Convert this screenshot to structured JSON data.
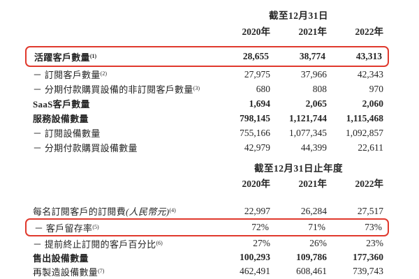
{
  "accent": {
    "highlight_border": "#e0392d",
    "text_color": "#252525"
  },
  "table1": {
    "period_header": "截至12月31日",
    "years": [
      "2020年",
      "2021年",
      "2022年"
    ],
    "rows": [
      {
        "label": "活躍客戶數量",
        "sup": "(1)",
        "values": [
          "28,655",
          "38,774",
          "43,313"
        ]
      },
      {
        "label": "－ 訂閱客戶數量",
        "sup": "(2)",
        "values": [
          "27,975",
          "37,966",
          "42,343"
        ]
      },
      {
        "label": "－ 分期付款購買設備的非訂閱客戶數量",
        "sup": "(3)",
        "values": [
          "680",
          "808",
          "970"
        ]
      },
      {
        "label": "SaaS客戶數量",
        "values": [
          "1,694",
          "2,065",
          "2,060"
        ]
      },
      {
        "label": "服務設備數量",
        "values": [
          "798,145",
          "1,121,744",
          "1,115,468"
        ]
      },
      {
        "label": "－ 訂閱設備數量",
        "values": [
          "755,166",
          "1,077,345",
          "1,092,857"
        ]
      },
      {
        "label": "－ 分期付款購買設備數量",
        "values": [
          "42,979",
          "44,399",
          "22,611"
        ]
      }
    ]
  },
  "table2": {
    "period_header": "截至12月31日止年度",
    "years": [
      "2020年",
      "2021年",
      "2022年"
    ],
    "rows": [
      {
        "label": "每名訂閱客戶的訂閱費",
        "label_paren": "(人民幣元)",
        "sup": "(4)",
        "values": [
          "22,997",
          "26,284",
          "27,517"
        ]
      },
      {
        "label": "－ 客戶留存率",
        "sup": "(5)",
        "values": [
          "72%",
          "71%",
          "73%"
        ]
      },
      {
        "label": "－ 提前終止訂閱的客戶百分比",
        "sup": "(6)",
        "values": [
          "27%",
          "26%",
          "23%"
        ]
      },
      {
        "label": "售出設備數量",
        "values": [
          "100,293",
          "109,786",
          "177,360"
        ]
      },
      {
        "label": "再製造設備數量",
        "sup": "(7)",
        "values": [
          "462,491",
          "608,461",
          "739,743"
        ]
      }
    ]
  }
}
